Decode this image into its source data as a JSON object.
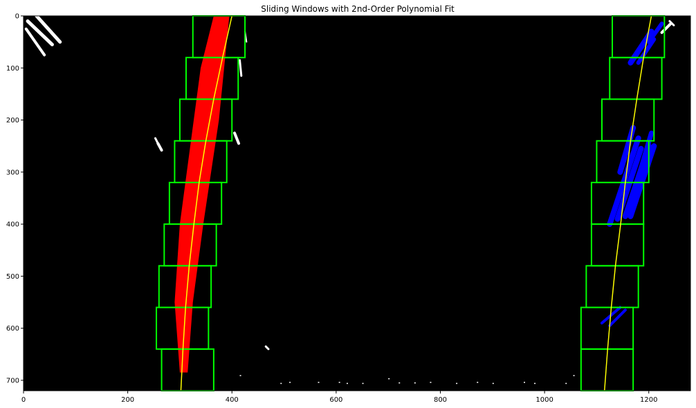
{
  "chart_data": {
    "type": "image-plot",
    "title": "Sliding Windows with 2nd-Order Polynomial Fit",
    "xlim": [
      0,
      1280
    ],
    "ylim": [
      720,
      0
    ],
    "x_ticks": [
      0,
      200,
      400,
      600,
      800,
      1000,
      1200
    ],
    "y_ticks": [
      0,
      100,
      200,
      300,
      400,
      500,
      600,
      700
    ],
    "x_tick_labels": [
      "0",
      "200",
      "400",
      "600",
      "800",
      "1000",
      "1200"
    ],
    "y_tick_labels": [
      "0",
      "100",
      "200",
      "300",
      "400",
      "500",
      "600",
      "700"
    ],
    "background_color": "#000000",
    "window_color": "#00ff00",
    "fit_color": "#ffff00",
    "left_lane_color": "#ff0000",
    "right_lane_color": "#0000ff",
    "raw_pixel_color": "#ffffff",
    "window_height": 80,
    "left_windows": [
      {
        "x_low": 265,
        "x_high": 365,
        "y_low": 640,
        "y_high": 720
      },
      {
        "x_low": 255,
        "x_high": 355,
        "y_low": 560,
        "y_high": 640
      },
      {
        "x_low": 260,
        "x_high": 360,
        "y_low": 480,
        "y_high": 560
      },
      {
        "x_low": 270,
        "x_high": 370,
        "y_low": 400,
        "y_high": 480
      },
      {
        "x_low": 280,
        "x_high": 380,
        "y_low": 320,
        "y_high": 400
      },
      {
        "x_low": 290,
        "x_high": 390,
        "y_low": 240,
        "y_high": 320
      },
      {
        "x_low": 300,
        "x_high": 400,
        "y_low": 160,
        "y_high": 240
      },
      {
        "x_low": 312,
        "x_high": 412,
        "y_low": 80,
        "y_high": 160
      },
      {
        "x_low": 325,
        "x_high": 425,
        "y_low": 0,
        "y_high": 80
      }
    ],
    "right_windows": [
      {
        "x_low": 1070,
        "x_high": 1170,
        "y_low": 640,
        "y_high": 720
      },
      {
        "x_low": 1070,
        "x_high": 1170,
        "y_low": 560,
        "y_high": 640
      },
      {
        "x_low": 1080,
        "x_high": 1180,
        "y_low": 480,
        "y_high": 560
      },
      {
        "x_low": 1090,
        "x_high": 1190,
        "y_low": 400,
        "y_high": 480
      },
      {
        "x_low": 1090,
        "x_high": 1190,
        "y_low": 320,
        "y_high": 400
      },
      {
        "x_low": 1100,
        "x_high": 1200,
        "y_low": 240,
        "y_high": 320
      },
      {
        "x_low": 1110,
        "x_high": 1210,
        "y_low": 160,
        "y_high": 240
      },
      {
        "x_low": 1125,
        "x_high": 1225,
        "y_low": 80,
        "y_high": 160
      },
      {
        "x_low": 1130,
        "x_high": 1230,
        "y_low": 0,
        "y_high": 80
      }
    ],
    "left_fit_points": [
      [
        400,
        0
      ],
      [
        382,
        80
      ],
      [
        365,
        160
      ],
      [
        350,
        240
      ],
      [
        337,
        320
      ],
      [
        327,
        400
      ],
      [
        318,
        480
      ],
      [
        311,
        560
      ],
      [
        306,
        640
      ],
      [
        302,
        720
      ]
    ],
    "right_fit_points": [
      [
        1205,
        0
      ],
      [
        1190,
        80
      ],
      [
        1177,
        160
      ],
      [
        1165,
        240
      ],
      [
        1155,
        320
      ],
      [
        1146,
        400
      ],
      [
        1136,
        480
      ],
      [
        1128,
        560
      ],
      [
        1121,
        640
      ],
      [
        1115,
        720
      ]
    ],
    "left_lane_band": [
      [
        [
          365,
          0
        ],
        [
          395,
          0
        ],
        [
          375,
          200
        ],
        [
          345,
          400
        ],
        [
          325,
          550
        ],
        [
          315,
          685
        ]
      ],
      [
        [
          300,
          685
        ],
        [
          290,
          550
        ],
        [
          300,
          400
        ],
        [
          320,
          250
        ],
        [
          340,
          100
        ],
        [
          365,
          0
        ]
      ]
    ],
    "right_lane_blobs": [
      {
        "shape": "streak",
        "points": [
          [
            1165,
            90
          ],
          [
            1205,
            30
          ]
        ],
        "width": 8
      },
      {
        "shape": "streak",
        "points": [
          [
            1180,
            90
          ],
          [
            1210,
            45
          ]
        ],
        "width": 6
      },
      {
        "shape": "streak",
        "points": [
          [
            1200,
            50
          ],
          [
            1225,
            15
          ]
        ],
        "width": 6
      },
      {
        "shape": "streak",
        "points": [
          [
            1125,
            400
          ],
          [
            1180,
            235
          ]
        ],
        "width": 8
      },
      {
        "shape": "streak",
        "points": [
          [
            1140,
            390
          ],
          [
            1185,
            255
          ]
        ],
        "width": 8
      },
      {
        "shape": "streak",
        "points": [
          [
            1155,
            385
          ],
          [
            1200,
            250
          ]
        ],
        "width": 8
      },
      {
        "shape": "streak",
        "points": [
          [
            1165,
            385
          ],
          [
            1210,
            250
          ]
        ],
        "width": 8
      },
      {
        "shape": "streak",
        "points": [
          [
            1145,
            300
          ],
          [
            1170,
            215
          ]
        ],
        "width": 8
      },
      {
        "shape": "streak",
        "points": [
          [
            1180,
            310
          ],
          [
            1205,
            225
          ]
        ],
        "width": 7
      },
      {
        "shape": "streak",
        "points": [
          [
            1110,
            590
          ],
          [
            1145,
            560
          ]
        ],
        "width": 4
      },
      {
        "shape": "streak",
        "points": [
          [
            1125,
            595
          ],
          [
            1155,
            565
          ]
        ],
        "width": 4
      }
    ],
    "raw_white_blobs": [
      {
        "points": [
          [
            5,
            25
          ],
          [
            40,
            75
          ]
        ],
        "width": 4
      },
      {
        "points": [
          [
            8,
            10
          ],
          [
            55,
            55
          ]
        ],
        "width": 5
      },
      {
        "points": [
          [
            25,
            0
          ],
          [
            70,
            50
          ]
        ],
        "width": 5
      },
      {
        "points": [
          [
            258,
            245
          ],
          [
            265,
            258
          ]
        ],
        "width": 4
      },
      {
        "points": [
          [
            253,
            235
          ],
          [
            258,
            245
          ]
        ],
        "width": 3
      },
      {
        "points": [
          [
            405,
            225
          ],
          [
            413,
            245
          ]
        ],
        "width": 4
      },
      {
        "points": [
          [
            465,
            635
          ],
          [
            470,
            640
          ]
        ],
        "width": 3
      },
      {
        "points": [
          [
            1225,
            32
          ],
          [
            1242,
            15
          ]
        ],
        "width": 4
      },
      {
        "points": [
          [
            1240,
            10
          ],
          [
            1248,
            18
          ]
        ],
        "width": 3
      },
      {
        "points": [
          [
            425,
            30
          ],
          [
            428,
            50
          ]
        ],
        "width": 2
      },
      {
        "points": [
          [
            415,
            85
          ],
          [
            418,
            115
          ]
        ],
        "width": 3
      }
    ],
    "raw_white_specks": [
      [
        415,
        690
      ],
      [
        493,
        705
      ],
      [
        565,
        703
      ],
      [
        605,
        703
      ],
      [
        650,
        705
      ],
      [
        700,
        696
      ],
      [
        720,
        704
      ],
      [
        780,
        703
      ],
      [
        830,
        705
      ],
      [
        870,
        703
      ],
      [
        900,
        705
      ],
      [
        960,
        703
      ],
      [
        1040,
        705
      ],
      [
        1055,
        690
      ],
      [
        510,
        703
      ],
      [
        620,
        705
      ],
      [
        750,
        704
      ],
      [
        980,
        705
      ]
    ]
  }
}
